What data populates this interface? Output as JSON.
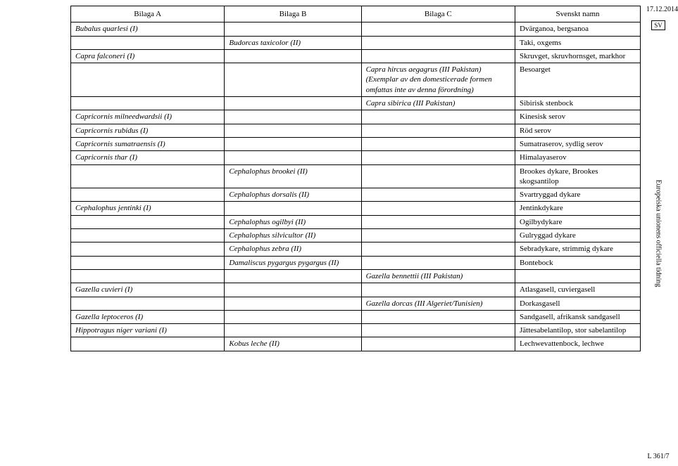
{
  "meta": {
    "date": "17.12.2014",
    "lang_box": "SV",
    "journal": "Europeiska unionens officiella tidning",
    "page_ref": "L 361/7"
  },
  "headers": {
    "a": "Bilaga A",
    "b": "Bilaga B",
    "c": "Bilaga C",
    "d": "Svenskt namn"
  },
  "rows": [
    {
      "a": "Bubalus quarlesi (I)",
      "b": "",
      "c": "",
      "d": "Dvärganoa, bergsanoa"
    },
    {
      "a": "",
      "b": "Budorcas taxicolor (II)",
      "c": "",
      "d": "Taki, oxgems"
    },
    {
      "a": "Capra falconeri (I)",
      "b": "",
      "c": "",
      "d": "Skruvget, skruvhornsget, markhor"
    },
    {
      "a": "",
      "b": "",
      "c": "Capra hircus aegagrus (III Pakistan) (Exemplar av den domesticerade formen omfattas inte av denna förordning)",
      "d": "Besoarget"
    },
    {
      "a": "",
      "b": "",
      "c": "Capra sibirica (III Pakistan)",
      "d": "Sibirisk stenbock"
    },
    {
      "a": "Capricornis milneedwardsii (I)",
      "b": "",
      "c": "",
      "d": "Kinesisk serov"
    },
    {
      "a": "Capricornis rubidus (I)",
      "b": "",
      "c": "",
      "d": "Röd serov"
    },
    {
      "a": "Capricornis sumatraensis (I)",
      "b": "",
      "c": "",
      "d": "Sumatraserov, sydlig serov"
    },
    {
      "a": "Capricornis thar (I)",
      "b": "",
      "c": "",
      "d": "Himalayaserov"
    },
    {
      "a": "",
      "b": "Cephalophus brookei (II)",
      "c": "",
      "d": "Brookes dykare, Brookes skogsantilop"
    },
    {
      "a": "",
      "b": "Cephalophus dorsalis (II)",
      "c": "",
      "d": "Svartryggad dykare"
    },
    {
      "a": "Cephalophus jentinki (I)",
      "b": "",
      "c": "",
      "d": "Jentinkdykare"
    },
    {
      "a": "",
      "b": "Cephalophus ogilbyi (II)",
      "c": "",
      "d": "Ogilbydykare"
    },
    {
      "a": "",
      "b": "Cephalophus silvicultor (II)",
      "c": "",
      "d": "Gulryggad dykare"
    },
    {
      "a": "",
      "b": "Cephalophus zebra (II)",
      "c": "",
      "d": "Sebradykare, strimmig dykare"
    },
    {
      "a": "",
      "b": "Damaliscus pygargus pygargus (II)",
      "c": "",
      "d": "Bontebock"
    },
    {
      "a": "",
      "b": "",
      "c": "Gazella bennettii (III Pakistan)",
      "d": ""
    },
    {
      "a": "Gazella cuvieri (I)",
      "b": "",
      "c": "",
      "d": "Atlasgasell, cuviergasell"
    },
    {
      "a": "",
      "b": "",
      "c": "Gazella dorcas (III Algeriet/Tunisien)",
      "d": "Dorkasgasell"
    },
    {
      "a": "Gazella leptoceros (I)",
      "b": "",
      "c": "",
      "d": "Sandgasell, afrikansk sandgasell"
    },
    {
      "a": "Hippotragus niger variani (I)",
      "b": "",
      "c": "",
      "d": "Jättesabelantilop, stor sabelantilop"
    },
    {
      "a": "",
      "b": "Kobus leche (II)",
      "c": "",
      "d": "Lechwevattenbock, lechwe"
    }
  ]
}
